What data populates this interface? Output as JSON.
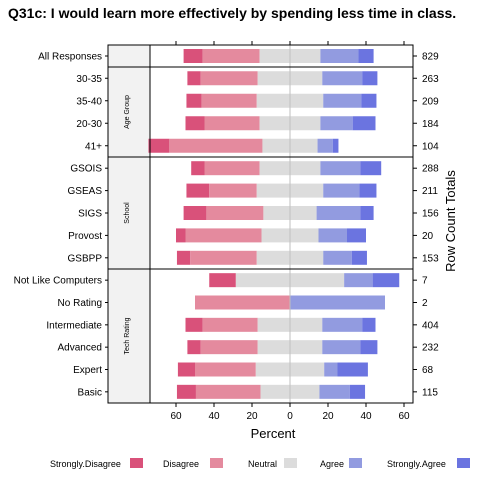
{
  "chart_data": {
    "type": "bar",
    "subtype": "diverging-stacked-horizontal",
    "title": "Q31c: I would learn more effectively by spending less time in class.",
    "xlabel": "Percent",
    "right_axis_label": "Row Count Totals",
    "xlim": [
      -75,
      62
    ],
    "x_ticks": [
      60,
      40,
      20,
      0,
      20,
      40,
      60
    ],
    "legend_position": "bottom",
    "legend": [
      "Strongly.Disagree",
      "Disagree",
      "Neutral",
      "Agree",
      "Strongly.Agree"
    ],
    "colors": {
      "strongly_disagree": "#d9517a",
      "disagree": "#e48a9e",
      "neutral": "#dcdcdc",
      "agree": "#929be0",
      "strongly_agree": "#6b74e0"
    },
    "panels": [
      {
        "strip": "",
        "rows": [
          {
            "label": "All Responses",
            "values": [
              10,
              30,
              32,
              20,
              8
            ],
            "total": "829"
          }
        ]
      },
      {
        "strip": "Age Group",
        "rows": [
          {
            "label": "30-35",
            "values": [
              7,
              30,
              34,
              21,
              8
            ],
            "total": "263"
          },
          {
            "label": "35-40",
            "values": [
              8,
              29,
              35,
              20,
              8
            ],
            "total": "209"
          },
          {
            "label": "20-30",
            "values": [
              10,
              29,
              32,
              17,
              12
            ],
            "total": "184"
          },
          {
            "label": "41+",
            "values": [
              11,
              49,
              29,
              8,
              3
            ],
            "total": "104"
          }
        ]
      },
      {
        "strip": "School",
        "rows": [
          {
            "label": "GSOIS",
            "values": [
              7,
              29,
              32,
              21,
              11
            ],
            "total": "288"
          },
          {
            "label": "GSEAS",
            "values": [
              12,
              25,
              35,
              19,
              9
            ],
            "total": "211"
          },
          {
            "label": "SIGS",
            "values": [
              12,
              30,
              28,
              23,
              7
            ],
            "total": "156"
          },
          {
            "label": "Provost",
            "values": [
              5,
              40,
              30,
              15,
              10
            ],
            "total": "20"
          },
          {
            "label": "GSBPP",
            "values": [
              7,
              35,
              35,
              15,
              8
            ],
            "total": "153"
          }
        ]
      },
      {
        "strip": "Tech Rating",
        "rows": [
          {
            "label": "Not Like Computers",
            "values": [
              14,
              0,
              57,
              15,
              14
            ],
            "total": "7"
          },
          {
            "label": "No Rating",
            "values": [
              0,
              50,
              0,
              50,
              0
            ],
            "total": "2"
          },
          {
            "label": "Intermediate",
            "values": [
              9,
              29,
              34,
              21,
              7
            ],
            "total": "404"
          },
          {
            "label": "Advanced",
            "values": [
              7,
              30,
              34,
              20,
              9
            ],
            "total": "232"
          },
          {
            "label": "Expert",
            "values": [
              9,
              32,
              36,
              7,
              16
            ],
            "total": "68"
          },
          {
            "label": "Basic",
            "values": [
              10,
              34,
              31,
              16,
              8
            ],
            "total": "115"
          }
        ]
      }
    ]
  }
}
